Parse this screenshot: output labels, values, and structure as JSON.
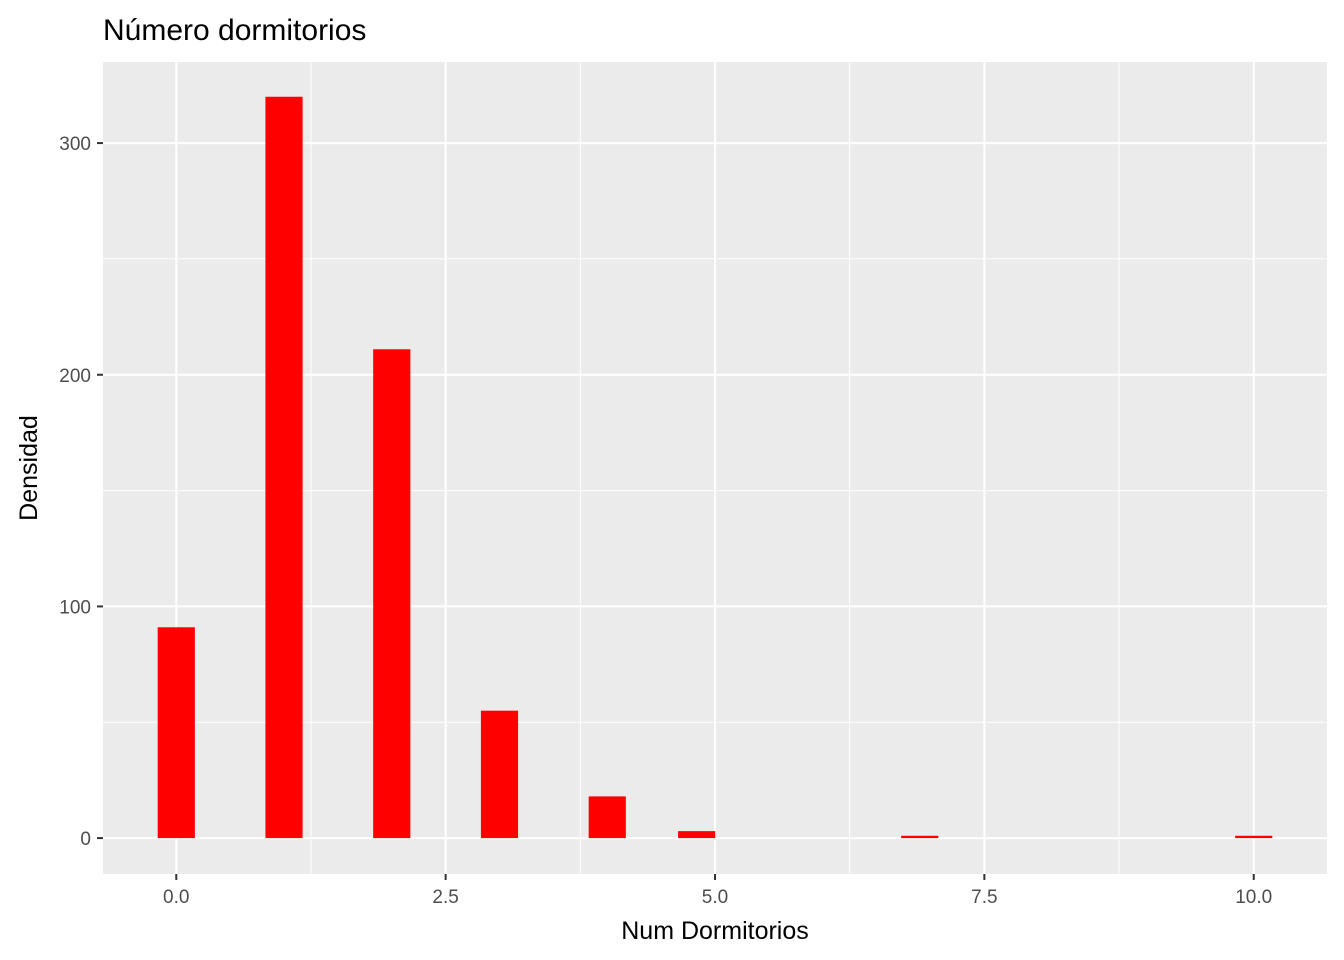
{
  "chart_data": {
    "type": "bar",
    "title": "Número dormitorios",
    "xlabel": "Num Dormitorios",
    "ylabel": "Densidad",
    "x": [
      0,
      1,
      2,
      3,
      4,
      4.83,
      6.9,
      10
    ],
    "values": [
      91,
      320,
      211,
      55,
      18,
      3,
      1,
      1
    ],
    "xlim": [
      -0.68,
      10.68
    ],
    "ylim": [
      -15.5,
      335
    ],
    "xticks": [
      0,
      2.5,
      5,
      7.5,
      10
    ],
    "xtick_labels": [
      "0.0",
      "2.5",
      "5.0",
      "7.5",
      "10.0"
    ],
    "yticks": [
      0,
      100,
      200,
      300
    ],
    "ytick_labels": [
      "0",
      "100",
      "200",
      "300"
    ],
    "bar_color": "#ff0000",
    "panel_color": "#ebebeb",
    "grid_color": "#ffffff",
    "grid": true,
    "legend": "none"
  }
}
